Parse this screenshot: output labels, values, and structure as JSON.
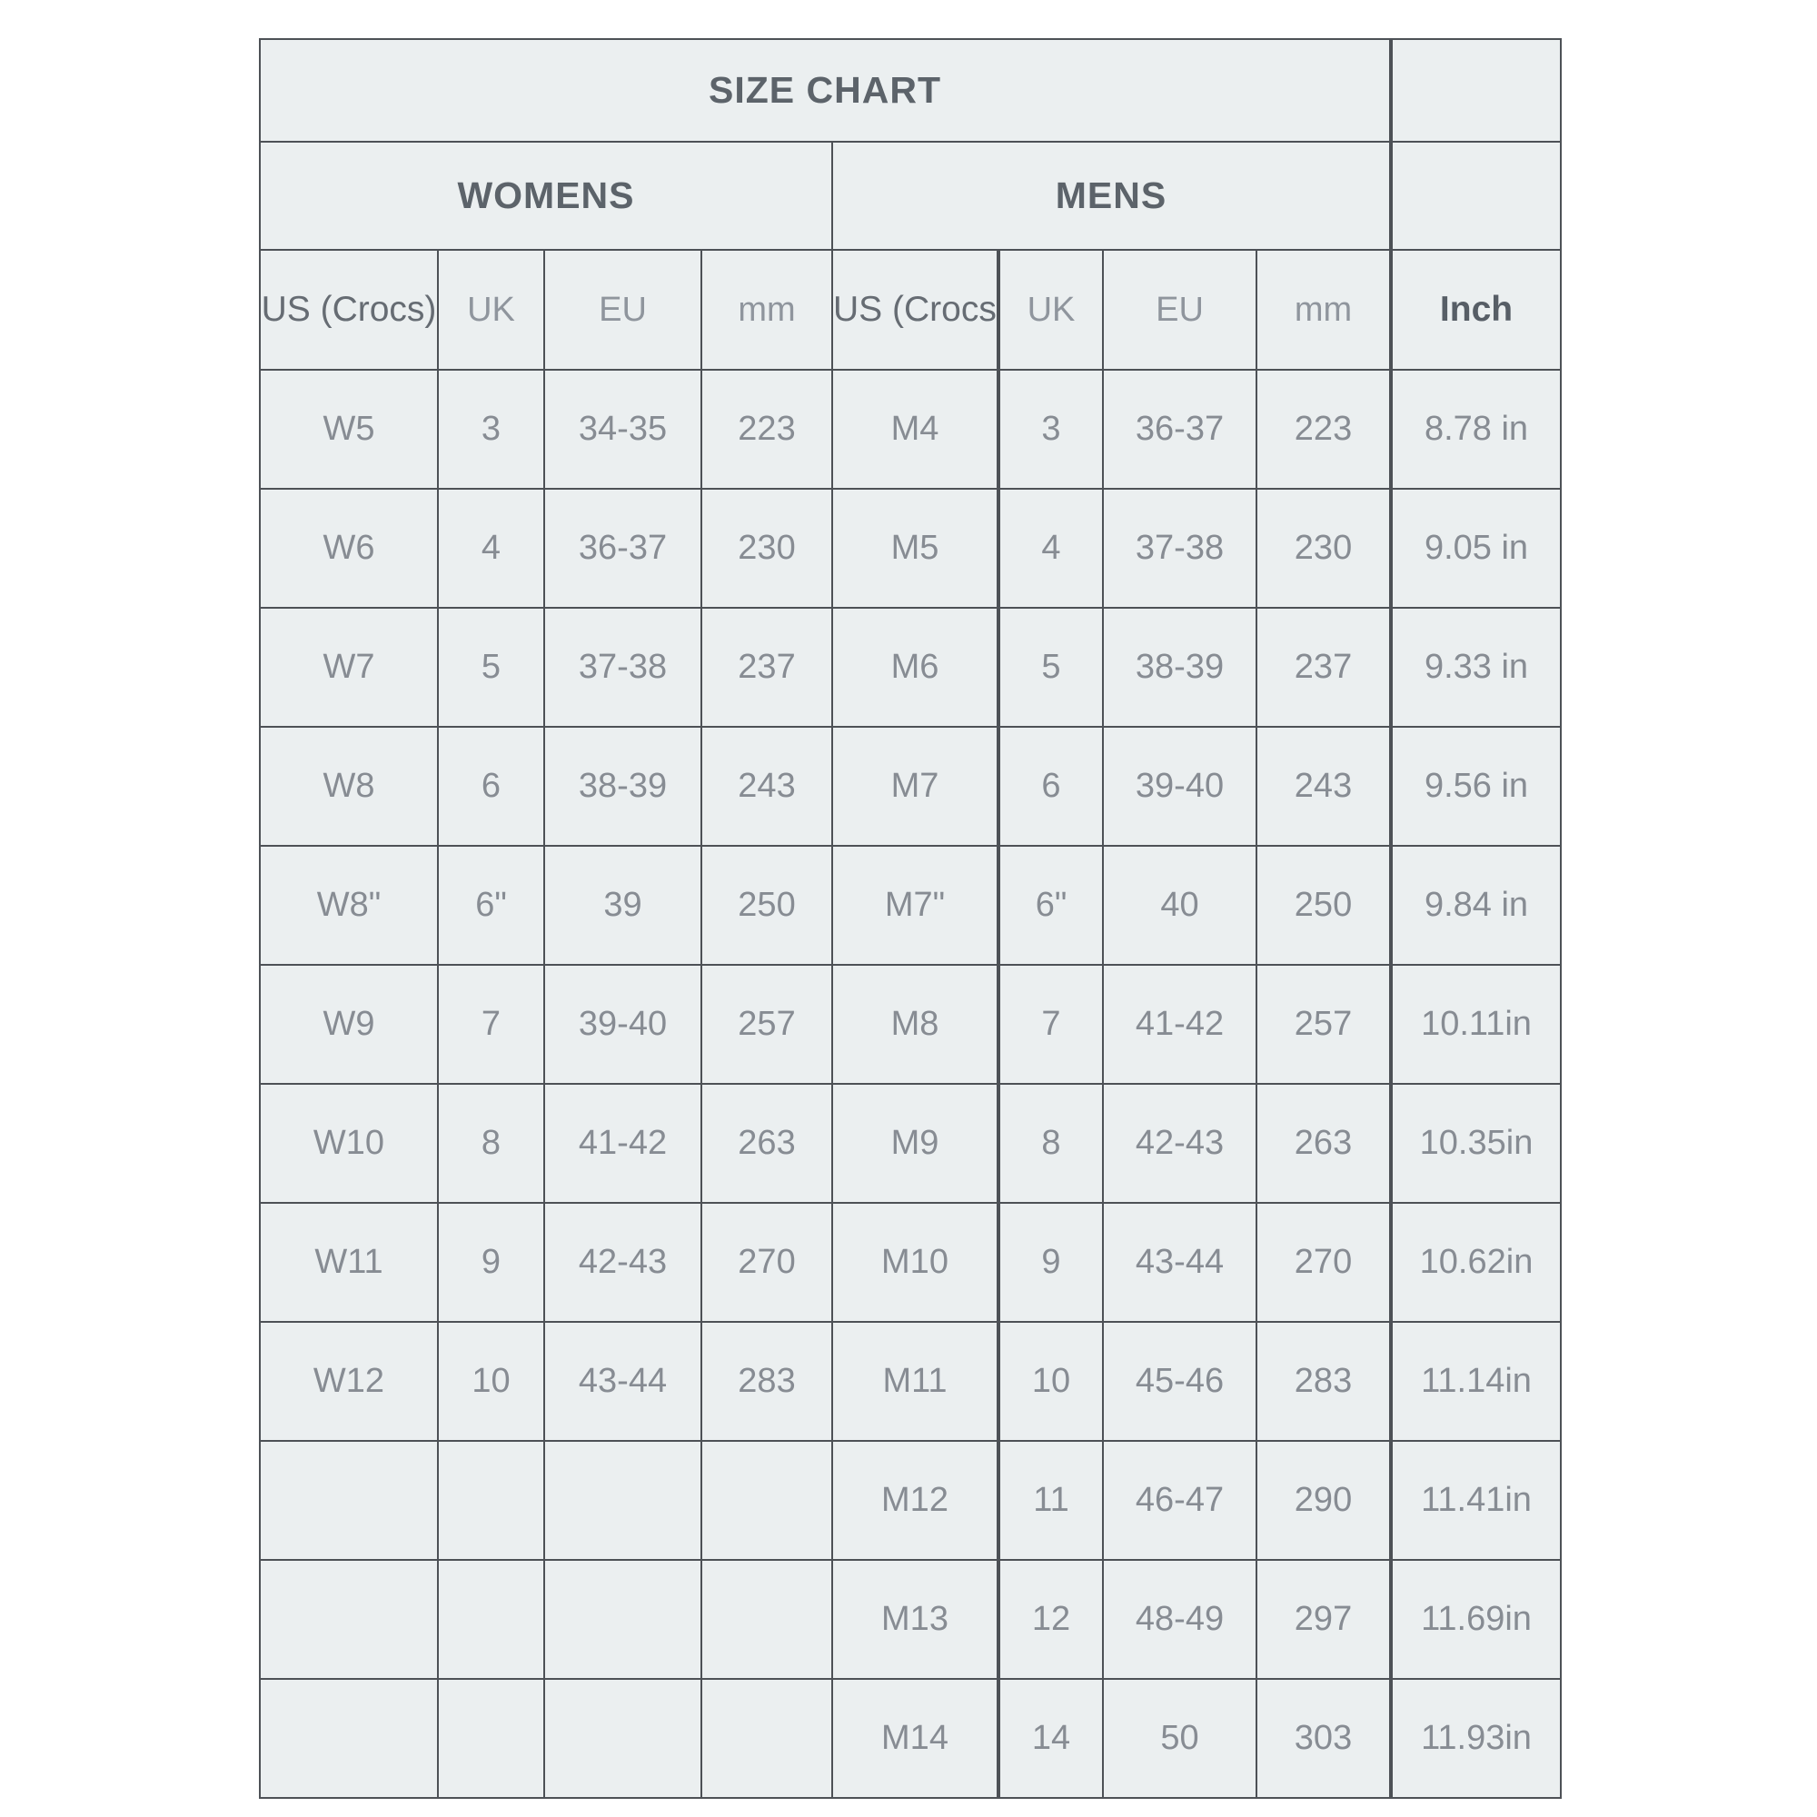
{
  "table": {
    "title": "SIZE CHART",
    "groups": {
      "womens": "WOMENS",
      "mens": "MENS"
    },
    "columns": [
      "US (Crocs)",
      "UK",
      "EU",
      "mm",
      "US (Crocs)",
      "UK",
      "EU",
      "mm",
      "Inch"
    ],
    "rows": [
      [
        "W5",
        "3",
        "34-35",
        "223",
        "M4",
        "3",
        "36-37",
        "223",
        "8.78 in"
      ],
      [
        "W6",
        "4",
        "36-37",
        "230",
        "M5",
        "4",
        "37-38",
        "230",
        "9.05 in"
      ],
      [
        "W7",
        "5",
        "37-38",
        "237",
        "M6",
        "5",
        "38-39",
        "237",
        "9.33 in"
      ],
      [
        "W8",
        "6",
        "38-39",
        "243",
        "M7",
        "6",
        "39-40",
        "243",
        "9.56 in"
      ],
      [
        "W8\"",
        "6\"",
        "39",
        "250",
        "M7\"",
        "6\"",
        "40",
        "250",
        "9.84 in"
      ],
      [
        "W9",
        "7",
        "39-40",
        "257",
        "M8",
        "7",
        "41-42",
        "257",
        "10.11in"
      ],
      [
        "W10",
        "8",
        "41-42",
        "263",
        "M9",
        "8",
        "42-43",
        "263",
        "10.35in"
      ],
      [
        "W11",
        "9",
        "42-43",
        "270",
        "M10",
        "9",
        "43-44",
        "270",
        "10.62in"
      ],
      [
        "W12",
        "10",
        "43-44",
        "283",
        "M11",
        "10",
        "45-46",
        "283",
        "11.14in"
      ],
      [
        "",
        "",
        "",
        "",
        "M12",
        "11",
        "46-47",
        "290",
        "11.41in"
      ],
      [
        "",
        "",
        "",
        "",
        "M13",
        "12",
        "48-49",
        "297",
        "11.69in"
      ],
      [
        "",
        "",
        "",
        "",
        "M14",
        "14",
        "50",
        "303",
        "11.93in"
      ]
    ]
  },
  "colors": {
    "cell_background": "#ebeff0",
    "border": "#4d5156",
    "title_text": "#5c636a",
    "strong_header_text": "#666c73",
    "light_header_text": "#8f959d",
    "data_text": "#878c93"
  }
}
